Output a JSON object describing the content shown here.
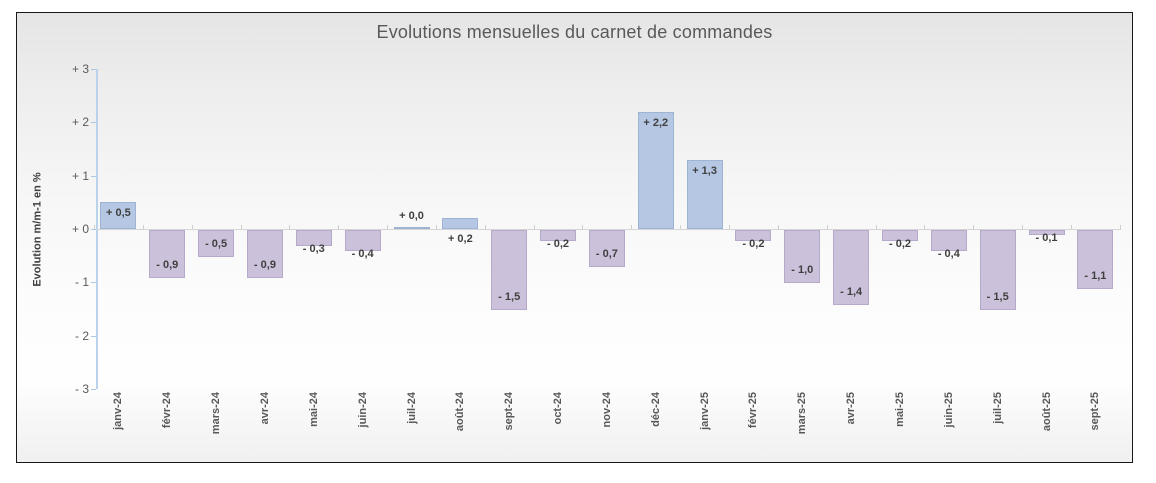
{
  "chart_data": {
    "type": "bar",
    "title": "Evolutions mensuelles du carnet de commandes",
    "ylabel": "Evolution m/m-1 en %",
    "xlabel": "",
    "ylim": [
      -3,
      3
    ],
    "yticks": [
      3,
      2,
      1,
      0,
      -1,
      -2,
      -3
    ],
    "ytick_labels": [
      "+ 3",
      "+ 2",
      "+ 1",
      "+ 0",
      "- 1",
      "- 2",
      "- 3"
    ],
    "grid": false,
    "legend": false,
    "categories": [
      "janv-24",
      "févr-24",
      "mars-24",
      "avr-24",
      "mai-24",
      "juin-24",
      "juil-24",
      "août-24",
      "sept-24",
      "oct-24",
      "nov-24",
      "déc-24",
      "janv-25",
      "févr-25",
      "mars-25",
      "avr-25",
      "mai-25",
      "juin-25",
      "juil-25",
      "août-25",
      "sept-25"
    ],
    "values": [
      0.5,
      -0.9,
      -0.5,
      -0.9,
      -0.3,
      -0.4,
      0.0,
      0.2,
      -1.5,
      -0.2,
      -0.7,
      2.2,
      1.3,
      -0.2,
      -1.0,
      -1.4,
      -0.2,
      -0.4,
      -1.5,
      -0.1,
      -1.1
    ],
    "value_labels": [
      "+ 0,5",
      "- 0,9",
      "- 0,5",
      "- 0,9",
      "- 0,3",
      "- 0,4",
      "+ 0,0",
      "+ 0,2",
      "- 1,5",
      "- 0,2",
      "- 0,7",
      "+ 2,2",
      "+ 1,3",
      "- 0,2",
      "- 1,0",
      "- 1,4",
      "- 0,2",
      "- 0,4",
      "- 1,5",
      "- 0,1",
      "- 1,1"
    ],
    "label_positions": [
      "inside-top",
      "inside-bottom",
      "inside-bottom",
      "inside-bottom",
      "below",
      "below",
      "above",
      "below-axis",
      "inside-bottom",
      "below",
      "inside-bottom",
      "inside-top",
      "inside-top",
      "below",
      "inside-bottom",
      "inside-bottom",
      "below",
      "below",
      "inside-bottom",
      "below",
      "inside-bottom"
    ],
    "colors": {
      "positive_fill": "#b5c7e2",
      "positive_border": "#9db4d4",
      "negative_fill": "#ccc1da",
      "negative_border": "#b7a9ca",
      "axis_line": "#b9d3ea",
      "zero_line": "#d6d6d6",
      "title_text": "#595959",
      "label_text": "#3f3f3f"
    }
  }
}
